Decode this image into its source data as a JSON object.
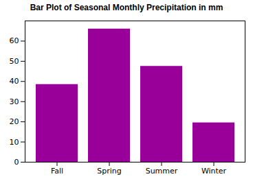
{
  "chart_data": {
    "type": "bar",
    "title": "Bar Plot of Seasonal Monthly Precipitation in mm",
    "categories": [
      "Fall",
      "Spring",
      "Summer",
      "Winter"
    ],
    "values": [
      38.5,
      66.0,
      47.5,
      19.5
    ],
    "color": "#990099",
    "ylim": [
      0,
      70
    ],
    "yticks": [
      0,
      10,
      20,
      30,
      40,
      50,
      60
    ],
    "grid": false
  }
}
